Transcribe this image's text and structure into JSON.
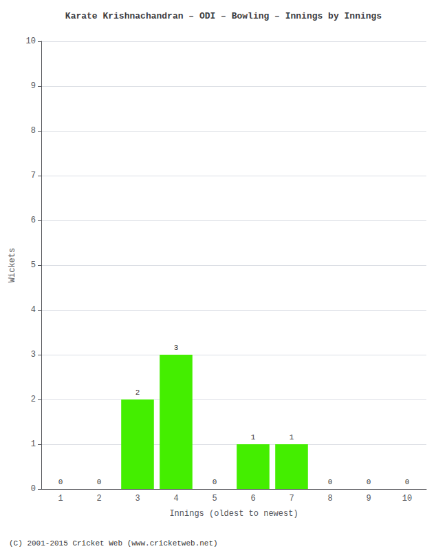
{
  "chart_data": {
    "type": "bar",
    "title": "Karate Krishnachandran – ODI – Bowling – Innings by Innings",
    "xlabel": "Innings (oldest to newest)",
    "ylabel": "Wickets",
    "categories": [
      1,
      2,
      3,
      4,
      5,
      6,
      7,
      8,
      9,
      10
    ],
    "values": [
      0,
      0,
      2,
      3,
      0,
      1,
      1,
      0,
      0,
      0
    ],
    "color": "#44ee00",
    "ylim": [
      0,
      10
    ],
    "yticks": [
      0,
      1,
      2,
      3,
      4,
      5,
      6,
      7,
      8,
      9,
      10
    ],
    "grid": true,
    "data_labels": true,
    "annotations": [
      "(C) 2001-2015 Cricket Web (www.cricketweb.net)"
    ]
  }
}
